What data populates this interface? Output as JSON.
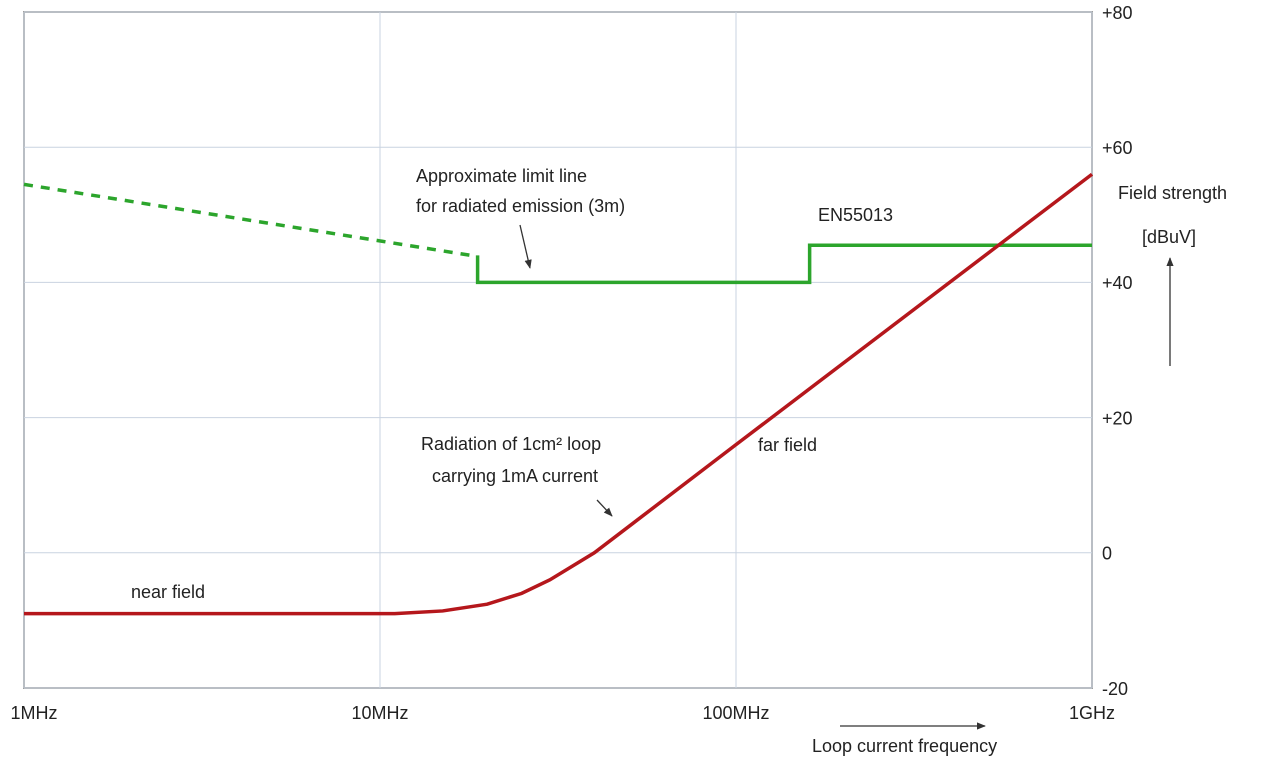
{
  "chart_data": {
    "type": "line",
    "xscale": "log",
    "xlim": [
      1000000,
      1000000000
    ],
    "xticks": [
      {
        "value": 1000000,
        "label": "1MHz"
      },
      {
        "value": 10000000,
        "label": "10MHz"
      },
      {
        "value": 100000000,
        "label": "100MHz"
      },
      {
        "value": 1000000000,
        "label": "1GHz"
      }
    ],
    "ylim": [
      -20,
      80
    ],
    "yticks": [
      {
        "value": 80,
        "label": "+80"
      },
      {
        "value": 60,
        "label": "+60"
      },
      {
        "value": 40,
        "label": "+40"
      },
      {
        "value": 20,
        "label": "+20"
      },
      0,
      -20
    ],
    "grid": true,
    "y_label": [
      "Field strength",
      "[dBuV]"
    ],
    "x_label": "Loop current frequency",
    "series": [
      {
        "color": "#2ca52c",
        "dashed": true,
        "x": [
          1000000,
          18000000
        ],
        "values": [
          54.5,
          44
        ]
      },
      {
        "color": "#2ca52c",
        "dashed": false,
        "x": [
          18800000,
          18800000,
          161000000,
          161000000,
          1000000000
        ],
        "values": [
          44,
          40,
          40,
          45.5,
          45.5
        ]
      },
      {
        "color": "#b5171c",
        "dashed": false,
        "x": [
          1000000,
          11000000,
          15000000,
          20000000,
          25000000,
          30000000,
          40000000,
          100000000,
          1000000000
        ],
        "values": [
          -9,
          -9,
          -8.6,
          -7.6,
          -6,
          -4,
          0,
          16,
          56
        ]
      }
    ],
    "annotations": [
      "Approximate limit line",
      "for radiated emission (3m)",
      "EN55013",
      "Radiation of 1cm² loop",
      "carrying 1mA current",
      "far field",
      "near field"
    ]
  }
}
